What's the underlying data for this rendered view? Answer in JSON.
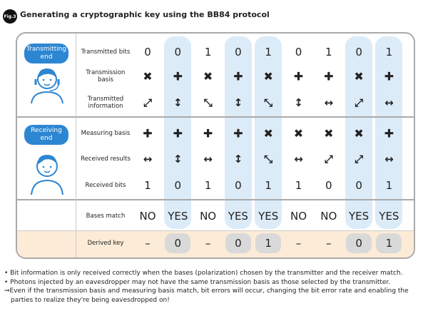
{
  "figure_label": "Fig.3",
  "title": "Generating a cryptographic key using the BB84 protocol",
  "parties": [
    {
      "label": "Transmitting end"
    },
    {
      "label": "Receiving end"
    }
  ],
  "rows": [
    {
      "label": "Transmitted bits",
      "cells": [
        "0",
        "0",
        "1",
        "0",
        "1",
        "0",
        "1",
        "0",
        "1"
      ]
    },
    {
      "label": "Transmission basis",
      "cells": [
        "✖",
        "✚",
        "✖",
        "✚",
        "✖",
        "✚",
        "✚",
        "✖",
        "✚"
      ]
    },
    {
      "label": "Transmitted information",
      "cells": [
        "⤢",
        "↕",
        "⤡",
        "↕",
        "⤡",
        "↕",
        "↔",
        "⤢",
        "↔"
      ]
    },
    {
      "label": "Measuring basis",
      "cells": [
        "✚",
        "✚",
        "✚",
        "✚",
        "✖",
        "✖",
        "✖",
        "✖",
        "✚"
      ]
    },
    {
      "label": "Received results",
      "cells": [
        "↔",
        "↕",
        "↔",
        "↕",
        "⤡",
        "↔",
        "⤢",
        "⤢",
        "↔"
      ]
    },
    {
      "label": "Received bits",
      "cells": [
        "1",
        "0",
        "1",
        "0",
        "1",
        "1",
        "0",
        "0",
        "1"
      ]
    },
    {
      "label": "Bases match",
      "cells": [
        "NO",
        "YES",
        "NO",
        "YES",
        "YES",
        "NO",
        "NO",
        "YES",
        "YES"
      ]
    },
    {
      "label": "Derived key",
      "cells": [
        "–",
        "0",
        "–",
        "0",
        "1",
        "–",
        "–",
        "0",
        "1"
      ]
    }
  ],
  "notes": [
    "• Bit information is only received correctly when the bases (polarization) chosen by the transmitter and the receiver match.",
    "• Photons injected by an eavesdropper may not have the same transmission basis as those selected by the transmitter.",
    "⇒Even if the transmission basis and measuring basis match, bit errors will occur, changing the bit error rate and enabling the parties to realize they're being eavesdropped on!"
  ]
}
